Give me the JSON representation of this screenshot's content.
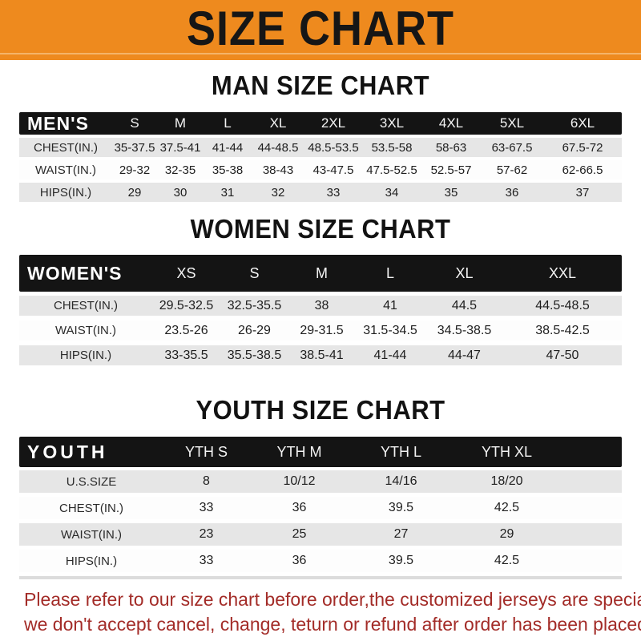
{
  "banner": {
    "title": "SIZE CHART",
    "background_color": "#ee8a1e",
    "stripe_color": "#f4b469",
    "text_color": "#161616"
  },
  "sections": {
    "men": {
      "heading": "MAN SIZE CHART",
      "table": {
        "header_label": "MEN'S",
        "columns": [
          "S",
          "M",
          "L",
          "XL",
          "2XL",
          "3XL",
          "4XL",
          "5XL",
          "6XL"
        ],
        "rows": [
          {
            "label": "CHEST(IN.)",
            "values": [
              "35-37.5",
              "37.5-41",
              "41-44",
              "44-48.5",
              "48.5-53.5",
              "53.5-58",
              "58-63",
              "63-67.5",
              "67.5-72"
            ]
          },
          {
            "label": "WAIST(IN.)",
            "values": [
              "29-32",
              "32-35",
              "35-38",
              "38-43",
              "43-47.5",
              "47.5-52.5",
              "52.5-57",
              "57-62",
              "62-66.5"
            ]
          },
          {
            "label": "HIPS(IN.)",
            "values": [
              "29",
              "30",
              "31",
              "32",
              "33",
              "34",
              "35",
              "36",
              "37"
            ]
          }
        ]
      }
    },
    "women": {
      "heading": "WOMEN SIZE CHART",
      "table": {
        "header_label": "WOMEN'S",
        "columns": [
          "XS",
          "S",
          "M",
          "L",
          "XL",
          "XXL"
        ],
        "rows": [
          {
            "label": "CHEST(IN.)",
            "values": [
              "29.5-32.5",
              "32.5-35.5",
              "38",
              "41",
              "44.5",
              "44.5-48.5"
            ]
          },
          {
            "label": "WAIST(IN.)",
            "values": [
              "23.5-26",
              "26-29",
              "29-31.5",
              "31.5-34.5",
              "34.5-38.5",
              "38.5-42.5"
            ]
          },
          {
            "label": "HIPS(IN.)",
            "values": [
              "33-35.5",
              "35.5-38.5",
              "38.5-41",
              "41-44",
              "44-47",
              "47-50"
            ]
          }
        ]
      }
    },
    "youth": {
      "heading": "YOUTH SIZE CHART",
      "table": {
        "header_label": "YOUTH",
        "columns": [
          "YTH S",
          "YTH M",
          "YTH L",
          "YTH XL"
        ],
        "rows": [
          {
            "label": "U.S.SIZE",
            "values": [
              "8",
              "10/12",
              "14/16",
              "18/20"
            ]
          },
          {
            "label": "CHEST(IN.)",
            "values": [
              "33",
              "36",
              "39.5",
              "42.5"
            ]
          },
          {
            "label": "WAIST(IN.)",
            "values": [
              "23",
              "25",
              "27",
              "29"
            ]
          },
          {
            "label": "HIPS(IN.)",
            "values": [
              "33",
              "36",
              "39.5",
              "42.5"
            ]
          }
        ]
      }
    }
  },
  "notice": {
    "line1": "Please refer to our size chart before order,the customized jerseys are special products,",
    "line2": "we don't accept cancel, change, teturn or refund after order has been placed!",
    "text_color": "#a32c28"
  },
  "colors": {
    "header_bar": "#141414",
    "row_gray": "#e6e6e6",
    "row_white": "#fdfdfd"
  }
}
